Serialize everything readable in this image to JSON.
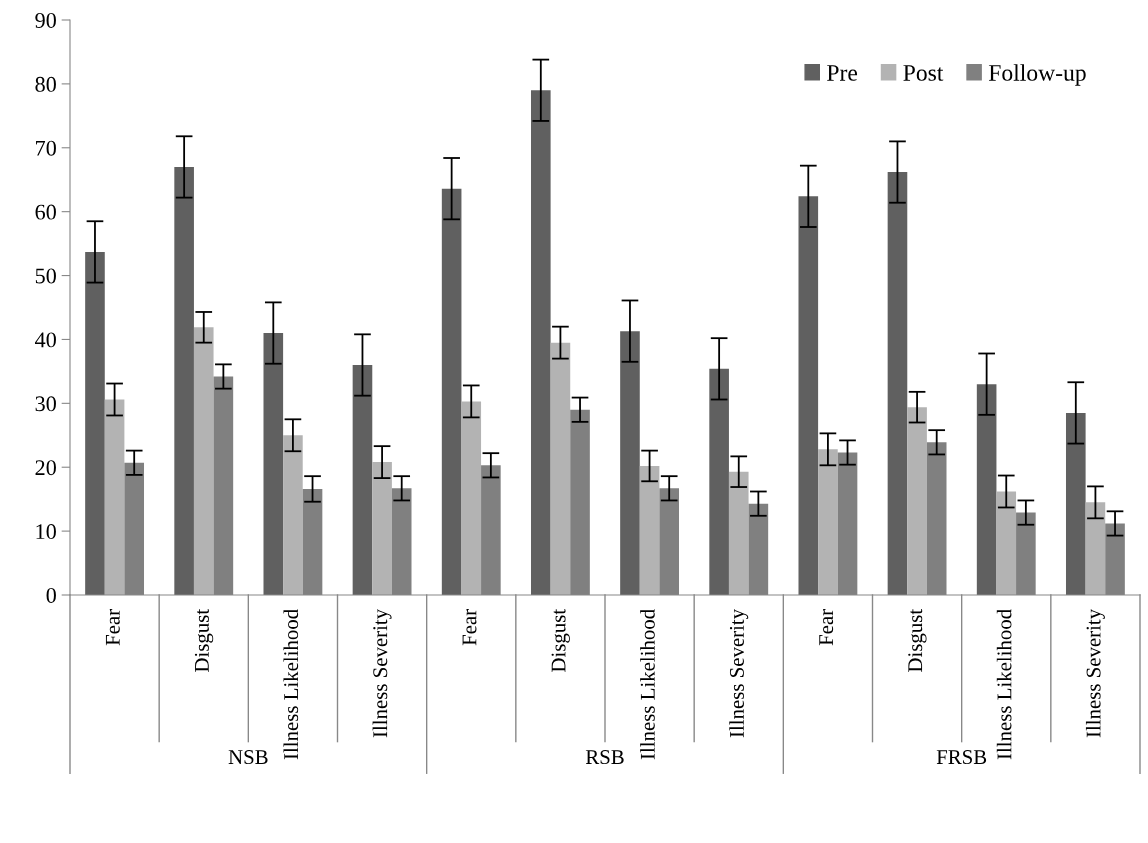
{
  "chart_data": {
    "type": "bar",
    "categories": [
      "Fear",
      "Disgust",
      "Illness Likelihood",
      "Illness Severity",
      "Fear",
      "Disgust",
      "Illness Likelihood",
      "Illness Severity",
      "Fear",
      "Disgust",
      "Illness Likelihood",
      "Illness Severity"
    ],
    "series": [
      {
        "name": "Pre",
        "color": "#606060",
        "values": [
          53.7,
          67,
          41,
          36,
          63.6,
          79,
          41.3,
          35.4,
          62.4,
          66.2,
          33,
          28.5
        ],
        "errors": [
          4.8,
          4.8,
          4.8,
          4.8,
          4.8,
          4.8,
          4.8,
          4.8,
          4.8,
          4.8,
          4.8,
          4.8
        ]
      },
      {
        "name": "Post",
        "color": "#b3b3b3",
        "values": [
          30.6,
          41.9,
          25,
          20.8,
          30.3,
          39.5,
          20.2,
          19.3,
          22.8,
          29.4,
          16.2,
          14.5
        ],
        "errors": [
          2.5,
          2.4,
          2.5,
          2.5,
          2.5,
          2.5,
          2.4,
          2.4,
          2.5,
          2.4,
          2.5,
          2.5
        ]
      },
      {
        "name": "Follow-up",
        "color": "#808080",
        "values": [
          20.7,
          34.2,
          16.6,
          16.7,
          20.3,
          29,
          16.7,
          14.3,
          22.3,
          23.9,
          12.9,
          11.2
        ],
        "errors": [
          1.9,
          1.9,
          2,
          1.9,
          1.9,
          1.9,
          1.9,
          1.9,
          1.9,
          1.9,
          1.9,
          1.9
        ]
      }
    ],
    "annotations": [
      "NSB",
      "RSB",
      "FRSB"
    ],
    "ylim": [
      0,
      90
    ],
    "yticks": [
      0,
      10,
      20,
      30,
      40,
      50,
      60,
      70,
      80,
      90
    ],
    "legend": "top right",
    "grid": false
  }
}
